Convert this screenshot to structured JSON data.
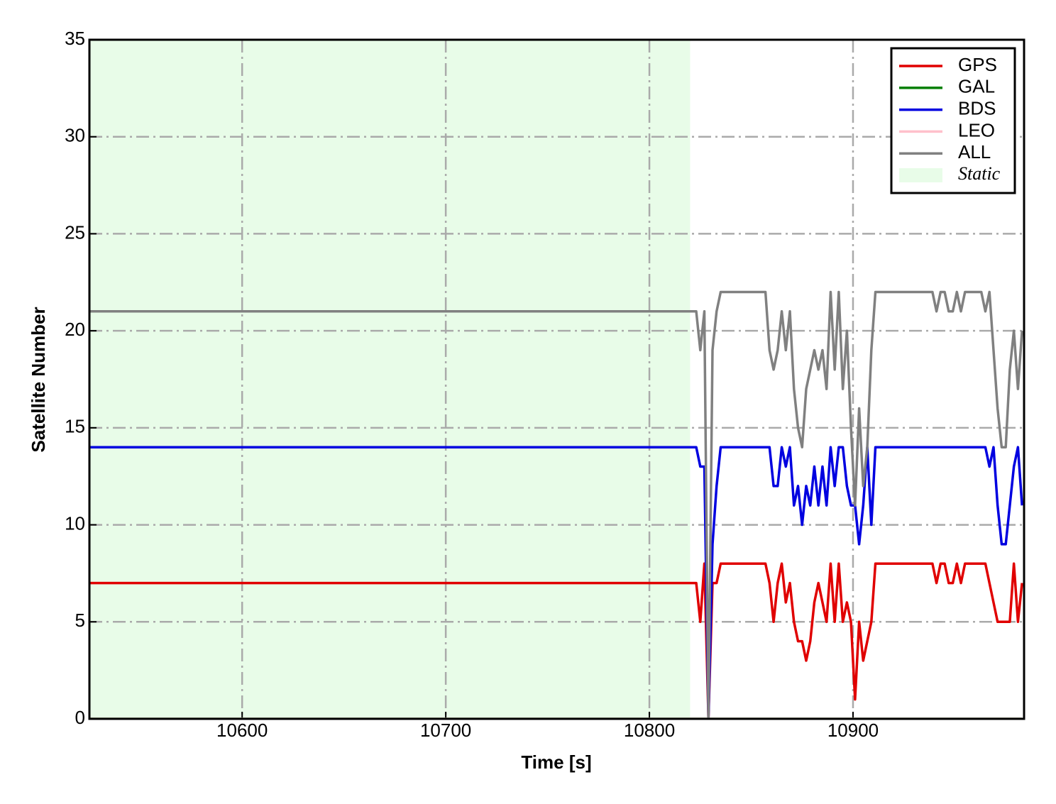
{
  "chart_data": {
    "type": "line",
    "xlabel": "Time [s]",
    "ylabel": "Satellite Number",
    "x": [
      10525,
      10821,
      10823,
      10825,
      10827,
      10829,
      10831,
      10833,
      10835,
      10837,
      10839,
      10841,
      10843,
      10845,
      10847,
      10849,
      10851,
      10853,
      10855,
      10857,
      10859,
      10861,
      10863,
      10865,
      10867,
      10869,
      10871,
      10873,
      10875,
      10877,
      10879,
      10881,
      10883,
      10885,
      10887,
      10889,
      10891,
      10893,
      10895,
      10897,
      10899,
      10901,
      10903,
      10905,
      10907,
      10909,
      10911,
      10913,
      10915,
      10917,
      10919,
      10921,
      10923,
      10925,
      10927,
      10929,
      10931,
      10933,
      10935,
      10937,
      10939,
      10941,
      10943,
      10945,
      10947,
      10949,
      10951,
      10953,
      10955,
      10957,
      10959,
      10961,
      10963,
      10965,
      10967,
      10969,
      10971,
      10973,
      10975,
      10977,
      10979,
      10981,
      10983
    ],
    "series": [
      {
        "name": "GPS",
        "color": "#e00000",
        "values": [
          7,
          7,
          7,
          5,
          8,
          0,
          7,
          7,
          8,
          8,
          8,
          8,
          8,
          8,
          8,
          8,
          8,
          8,
          8,
          8,
          7,
          5,
          7,
          8,
          6,
          7,
          5,
          4,
          4,
          3,
          4,
          6,
          7,
          6,
          5,
          8,
          5,
          8,
          5,
          6,
          5,
          1,
          5,
          3,
          4,
          5,
          8,
          8,
          8,
          8,
          8,
          8,
          8,
          8,
          8,
          8,
          8,
          8,
          8,
          8,
          8,
          7,
          8,
          8,
          7,
          7,
          8,
          7,
          8,
          8,
          8,
          8,
          8,
          8,
          7,
          6,
          5,
          5,
          5,
          5,
          8,
          5,
          7
        ]
      },
      {
        "name": "GAL",
        "color": "#008000",
        "values": [
          0,
          0,
          0,
          0,
          0,
          0,
          0,
          0,
          0,
          0,
          0,
          0,
          0,
          0,
          0,
          0,
          0,
          0,
          0,
          0,
          0,
          0,
          0,
          0,
          0,
          0,
          0,
          0,
          0,
          0,
          0,
          0,
          0,
          0,
          0,
          0,
          0,
          0,
          0,
          0,
          0,
          0,
          0,
          0,
          0,
          0,
          0,
          0,
          0,
          0,
          0,
          0,
          0,
          0,
          0,
          0,
          0,
          0,
          0,
          0,
          0,
          0,
          0,
          0,
          0,
          0,
          0,
          0,
          0,
          0,
          0,
          0,
          0,
          0,
          0,
          0,
          0,
          0,
          0,
          0,
          0,
          0,
          0
        ]
      },
      {
        "name": "BDS",
        "color": "#0000e0",
        "values": [
          14,
          14,
          14,
          13,
          13,
          0,
          9,
          12,
          14,
          14,
          14,
          14,
          14,
          14,
          14,
          14,
          14,
          14,
          14,
          14,
          14,
          12,
          12,
          14,
          13,
          14,
          11,
          12,
          10,
          12,
          11,
          13,
          11,
          13,
          11,
          14,
          12,
          14,
          14,
          12,
          11,
          11,
          9,
          11,
          14,
          10,
          14,
          14,
          14,
          14,
          14,
          14,
          14,
          14,
          14,
          14,
          14,
          14,
          14,
          14,
          14,
          14,
          14,
          14,
          14,
          14,
          14,
          14,
          14,
          14,
          14,
          14,
          14,
          14,
          13,
          14,
          11,
          9,
          9,
          11,
          13,
          14,
          11
        ]
      },
      {
        "name": "LEO",
        "color": "#ffc0cb",
        "values": [
          0,
          0,
          0,
          0,
          0,
          0,
          0,
          0,
          0,
          0,
          0,
          0,
          0,
          0,
          0,
          0,
          0,
          0,
          0,
          0,
          0,
          0,
          0,
          0,
          0,
          0,
          0,
          0,
          0,
          0,
          0,
          0,
          0,
          0,
          0,
          0,
          0,
          0,
          0,
          0,
          0,
          0,
          0,
          0,
          0,
          0,
          0,
          0,
          0,
          0,
          0,
          0,
          0,
          0,
          0,
          0,
          0,
          0,
          0,
          0,
          0,
          0,
          0,
          0,
          0,
          0,
          0,
          0,
          0,
          0,
          0,
          0,
          0,
          0,
          0,
          0,
          0,
          0,
          0,
          0,
          0,
          0,
          0
        ]
      },
      {
        "name": "ALL",
        "color": "#808080",
        "values": [
          21,
          21,
          21,
          19,
          21,
          0,
          19,
          21,
          22,
          22,
          22,
          22,
          22,
          22,
          22,
          22,
          22,
          22,
          22,
          22,
          19,
          18,
          19,
          21,
          19,
          21,
          17,
          15,
          14,
          17,
          18,
          19,
          18,
          19,
          17,
          22,
          18,
          22,
          17,
          20,
          15,
          11,
          16,
          12,
          14,
          19,
          22,
          22,
          22,
          22,
          22,
          22,
          22,
          22,
          22,
          22,
          22,
          22,
          22,
          22,
          22,
          21,
          22,
          22,
          21,
          21,
          22,
          21,
          22,
          22,
          22,
          22,
          22,
          21,
          22,
          19,
          16,
          14,
          14,
          18,
          20,
          17,
          20
        ]
      }
    ],
    "shade": {
      "label": "Static",
      "xrange": [
        10525,
        10820
      ],
      "color": "#e8fce8"
    },
    "xlim": [
      10525,
      10984
    ],
    "xticks": [
      10600,
      10700,
      10800,
      10900
    ],
    "ylim": [
      0,
      35
    ],
    "yticks": [
      0,
      5,
      10,
      15,
      20,
      25,
      30,
      35
    ],
    "grid": true,
    "legend": "upper right"
  }
}
